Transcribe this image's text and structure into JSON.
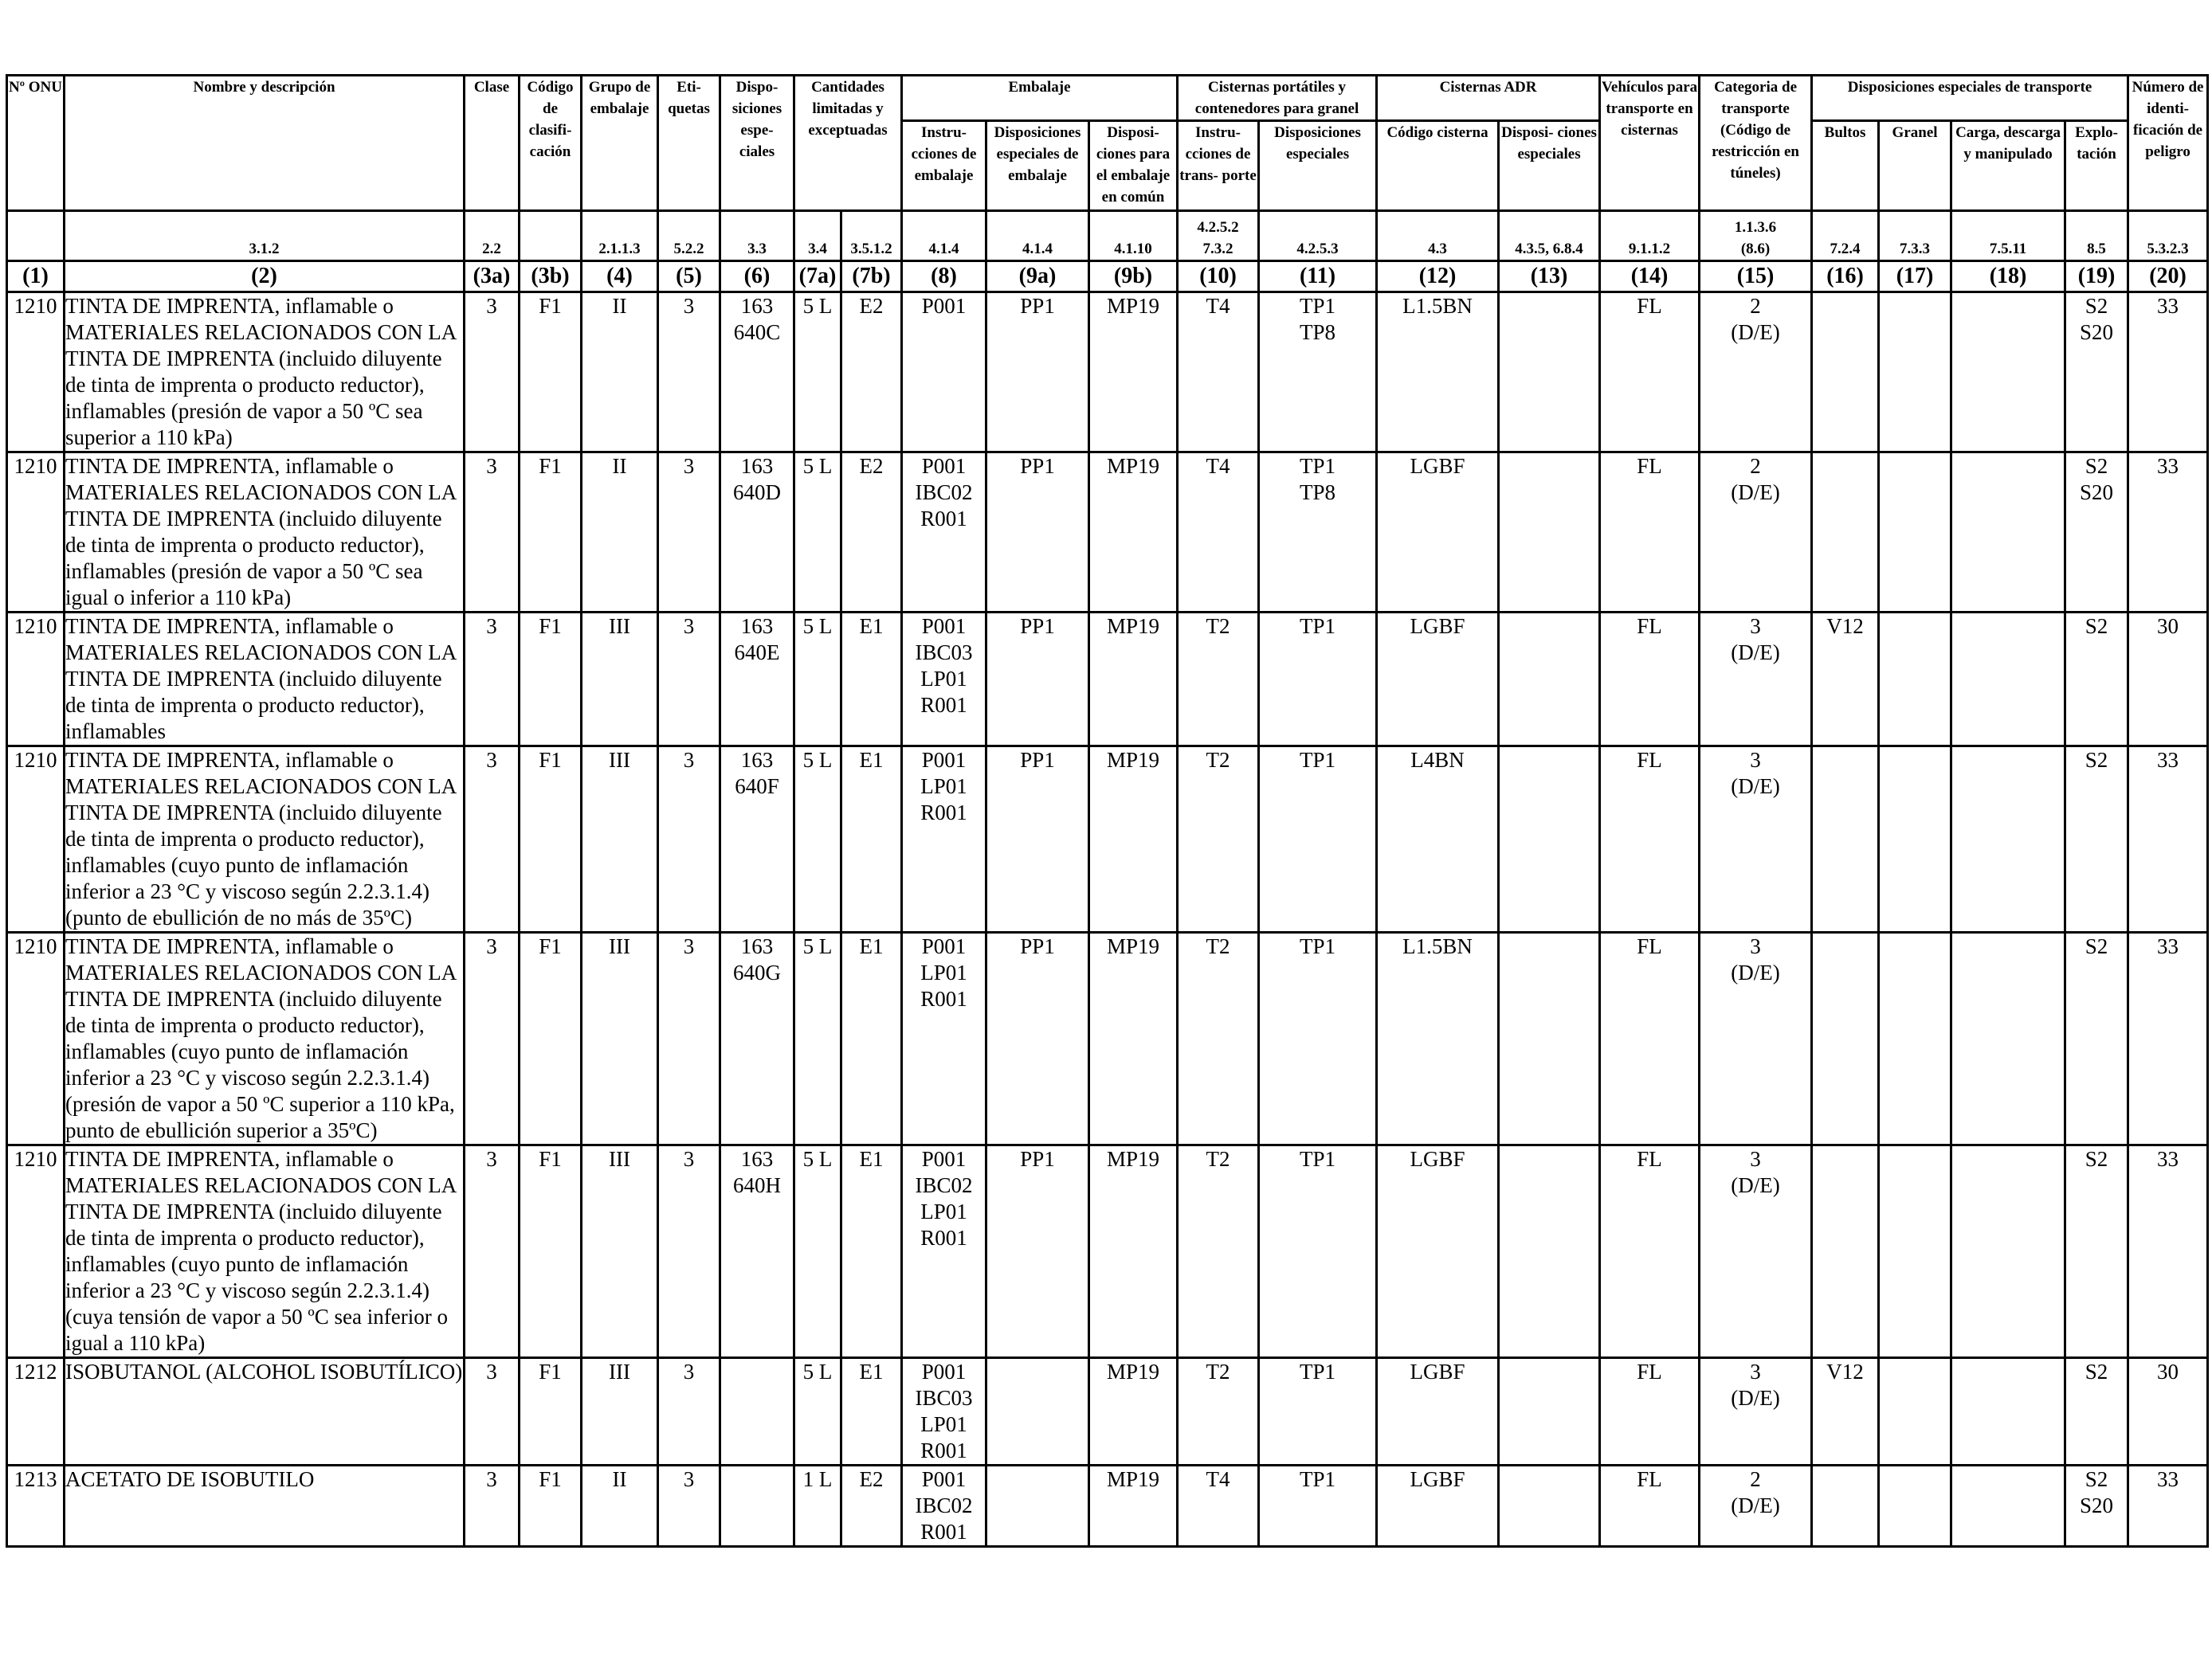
{
  "header": {
    "un": "Nº ONU",
    "name": "Nombre y descripción",
    "class": "Clase",
    "code": "Código de clasifi- cación",
    "packing_group": "Grupo de embalaje",
    "labels": "Eti- quetas",
    "special_provisions": "Dispo- siciones espe- ciales",
    "limited_quantities": "Cantidades limitadas y exceptuadas",
    "packaging": "Embalaje",
    "packing_instructions": "Instru- cciones de embalaje",
    "packing_special": "Disposiciones especiales de embalaje",
    "mixed_packing": "Disposi- ciones para el embalaje en común",
    "portable_tanks": "Cisternas portátiles y contenedores para granel",
    "portable_instructions": "Instru- cciones de trans- porte",
    "portable_special": "Disposiciones especiales",
    "adr_tanks": "Cisternas ADR",
    "tank_code": "Código cisterna",
    "tank_special": "Disposi- ciones especiales",
    "vehicles": "Vehículos para transporte en cisternas",
    "transport_category": "Categoria de transporte (Código de restricción en túneles)",
    "special_transport": "Disposiciones especiales de transporte",
    "packages": "Bultos",
    "bulk": "Granel",
    "loading": "Carga, descarga y manipulado",
    "operation": "Explo- tación",
    "hazard_id": "Número de identi- ficación de peligro"
  },
  "refs": [
    "",
    "3.1.2",
    "2.2",
    "",
    "2.1.1.3",
    "5.2.2",
    "3.3",
    "3.4",
    "3.5.1.2",
    "4.1.4",
    "4.1.4",
    "4.1.10",
    "4.2.5.2\n7.3.2",
    "4.2.5.3",
    "4.3",
    "4.3.5, 6.8.4",
    "9.1.1.2",
    "1.1.3.6\n(8.6)",
    "7.2.4",
    "7.3.3",
    "7.5.11",
    "8.5",
    "5.3.2.3"
  ],
  "col_numbers": [
    "(1)",
    "(2)",
    "(3a)",
    "(3b)",
    "(4)",
    "(5)",
    "(6)",
    "(7a)",
    "(7b)",
    "(8)",
    "(9a)",
    "(9b)",
    "(10)",
    "(11)",
    "(12)",
    "(13)",
    "(14)",
    "(15)",
    "(16)",
    "(17)",
    "(18)",
    "(19)",
    "(20)"
  ],
  "rows": [
    {
      "un": "1210",
      "name": "TINTA DE IMPRENTA, inflamable o MATERIALES RELACIONADOS CON LA TINTA DE IMPRENTA (incluido diluyente de tinta de imprenta o producto reductor), inflamables (presión de vapor a 50 ºC sea superior a 110 kPa)",
      "class": "3",
      "code": "F1",
      "pg": "II",
      "labels": "3",
      "sp": "163\n640C",
      "lq": "5 L",
      "eq": "E2",
      "pi": "P001",
      "pp": "PP1",
      "mp": "MP19",
      "ti": "T4",
      "tp": "TP1\nTP8",
      "tank": "L1.5BN",
      "tsp": "",
      "veh": "FL",
      "cat": "2\n(D/E)",
      "pkg": "",
      "bulk": "",
      "load": "",
      "op": "S2\nS20",
      "hin": "33"
    },
    {
      "un": "1210",
      "name": "TINTA DE IMPRENTA, inflamable o MATERIALES RELACIONADOS CON LA TINTA DE IMPRENTA (incluido diluyente de tinta de imprenta o producto reductor), inflamables (presión de vapor a 50 ºC sea igual o inferior a 110 kPa)",
      "class": "3",
      "code": "F1",
      "pg": "II",
      "labels": "3",
      "sp": "163\n640D",
      "lq": "5 L",
      "eq": "E2",
      "pi": "P001\nIBC02\nR001",
      "pp": "PP1",
      "mp": "MP19",
      "ti": "T4",
      "tp": "TP1\nTP8",
      "tank": "LGBF",
      "tsp": "",
      "veh": "FL",
      "cat": "2\n(D/E)",
      "pkg": "",
      "bulk": "",
      "load": "",
      "op": "S2\nS20",
      "hin": "33"
    },
    {
      "un": "1210",
      "name": "TINTA DE IMPRENTA, inflamable o MATERIALES RELACIONADOS CON LA TINTA DE IMPRENTA (incluido diluyente de tinta de imprenta o producto reductor), inflamables",
      "class": "3",
      "code": "F1",
      "pg": "III",
      "labels": "3",
      "sp": "163\n640E",
      "lq": "5 L",
      "eq": "E1",
      "pi": "P001\nIBC03\nLP01\nR001",
      "pp": "PP1",
      "mp": "MP19",
      "ti": "T2",
      "tp": "TP1",
      "tank": "LGBF",
      "tsp": "",
      "veh": "FL",
      "cat": "3\n(D/E)",
      "pkg": "V12",
      "bulk": "",
      "load": "",
      "op": "S2",
      "hin": "30"
    },
    {
      "un": "1210",
      "name": "TINTA DE IMPRENTA, inflamable o MATERIALES RELACIONADOS CON LA TINTA DE IMPRENTA (incluido diluyente de tinta de imprenta o producto reductor), inflamables (cuyo punto de inflamación inferior a 23 °C y viscoso según 2.2.3.1.4) (punto de ebullición de no más de 35ºC)",
      "class": "3",
      "code": "F1",
      "pg": "III",
      "labels": "3",
      "sp": "163\n640F",
      "lq": "5 L",
      "eq": "E1",
      "pi": "P001\nLP01\nR001",
      "pp": "PP1",
      "mp": "MP19",
      "ti": "T2",
      "tp": "TP1",
      "tank": "L4BN",
      "tsp": "",
      "veh": "FL",
      "cat": "3\n(D/E)",
      "pkg": "",
      "bulk": "",
      "load": "",
      "op": "S2",
      "hin": "33"
    },
    {
      "un": "1210",
      "name": "TINTA DE IMPRENTA, inflamable o MATERIALES RELACIONADOS CON LA TINTA DE IMPRENTA (incluido diluyente de tinta de imprenta o producto reductor), inflamables (cuyo punto de inflamación inferior a 23 °C y viscoso según 2.2.3.1.4) (presión de vapor a 50 ºC superior a 110 kPa, punto de ebullición superior a 35ºC)",
      "class": "3",
      "code": "F1",
      "pg": "III",
      "labels": "3",
      "sp": "163\n640G",
      "lq": "5 L",
      "eq": "E1",
      "pi": "P001\nLP01\nR001",
      "pp": "PP1",
      "mp": "MP19",
      "ti": "T2",
      "tp": "TP1",
      "tank": "L1.5BN",
      "tsp": "",
      "veh": "FL",
      "cat": "3\n(D/E)",
      "pkg": "",
      "bulk": "",
      "load": "",
      "op": "S2",
      "hin": "33"
    },
    {
      "un": "1210",
      "name": "TINTA DE IMPRENTA, inflamable o MATERIALES RELACIONADOS CON LA TINTA DE IMPRENTA (incluido diluyente de tinta de imprenta o producto reductor), inflamables (cuyo punto de inflamación inferior a 23 °C y viscoso según 2.2.3.1.4) (cuya tensión de vapor a 50 ºC sea inferior o igual a 110 kPa)",
      "class": "3",
      "code": "F1",
      "pg": "III",
      "labels": "3",
      "sp": "163\n640H",
      "lq": "5 L",
      "eq": "E1",
      "pi": "P001\nIBC02\nLP01\nR001",
      "pp": "PP1",
      "mp": "MP19",
      "ti": "T2",
      "tp": "TP1",
      "tank": "LGBF",
      "tsp": "",
      "veh": "FL",
      "cat": "3\n(D/E)",
      "pkg": "",
      "bulk": "",
      "load": "",
      "op": "S2",
      "hin": "33"
    },
    {
      "un": "1212",
      "name": "ISOBUTANOL (ALCOHOL ISOBUTÍLICO)",
      "class": "3",
      "code": "F1",
      "pg": "III",
      "labels": "3",
      "sp": "",
      "lq": "5 L",
      "eq": "E1",
      "pi": "P001\nIBC03\nLP01\nR001",
      "pp": "",
      "mp": "MP19",
      "ti": "T2",
      "tp": "TP1",
      "tank": "LGBF",
      "tsp": "",
      "veh": "FL",
      "cat": "3\n(D/E)",
      "pkg": "V12",
      "bulk": "",
      "load": "",
      "op": "S2",
      "hin": "30"
    },
    {
      "un": "1213",
      "name": "ACETATO DE ISOBUTILO",
      "class": "3",
      "code": "F1",
      "pg": "II",
      "labels": "3",
      "sp": "",
      "lq": "1 L",
      "eq": "E2",
      "pi": "P001\nIBC02\nR001",
      "pp": "",
      "mp": "MP19",
      "ti": "T4",
      "tp": "TP1",
      "tank": "LGBF",
      "tsp": "",
      "veh": "FL",
      "cat": "2\n(D/E)",
      "pkg": "",
      "bulk": "",
      "load": "",
      "op": "S2\nS20",
      "hin": "33"
    }
  ]
}
